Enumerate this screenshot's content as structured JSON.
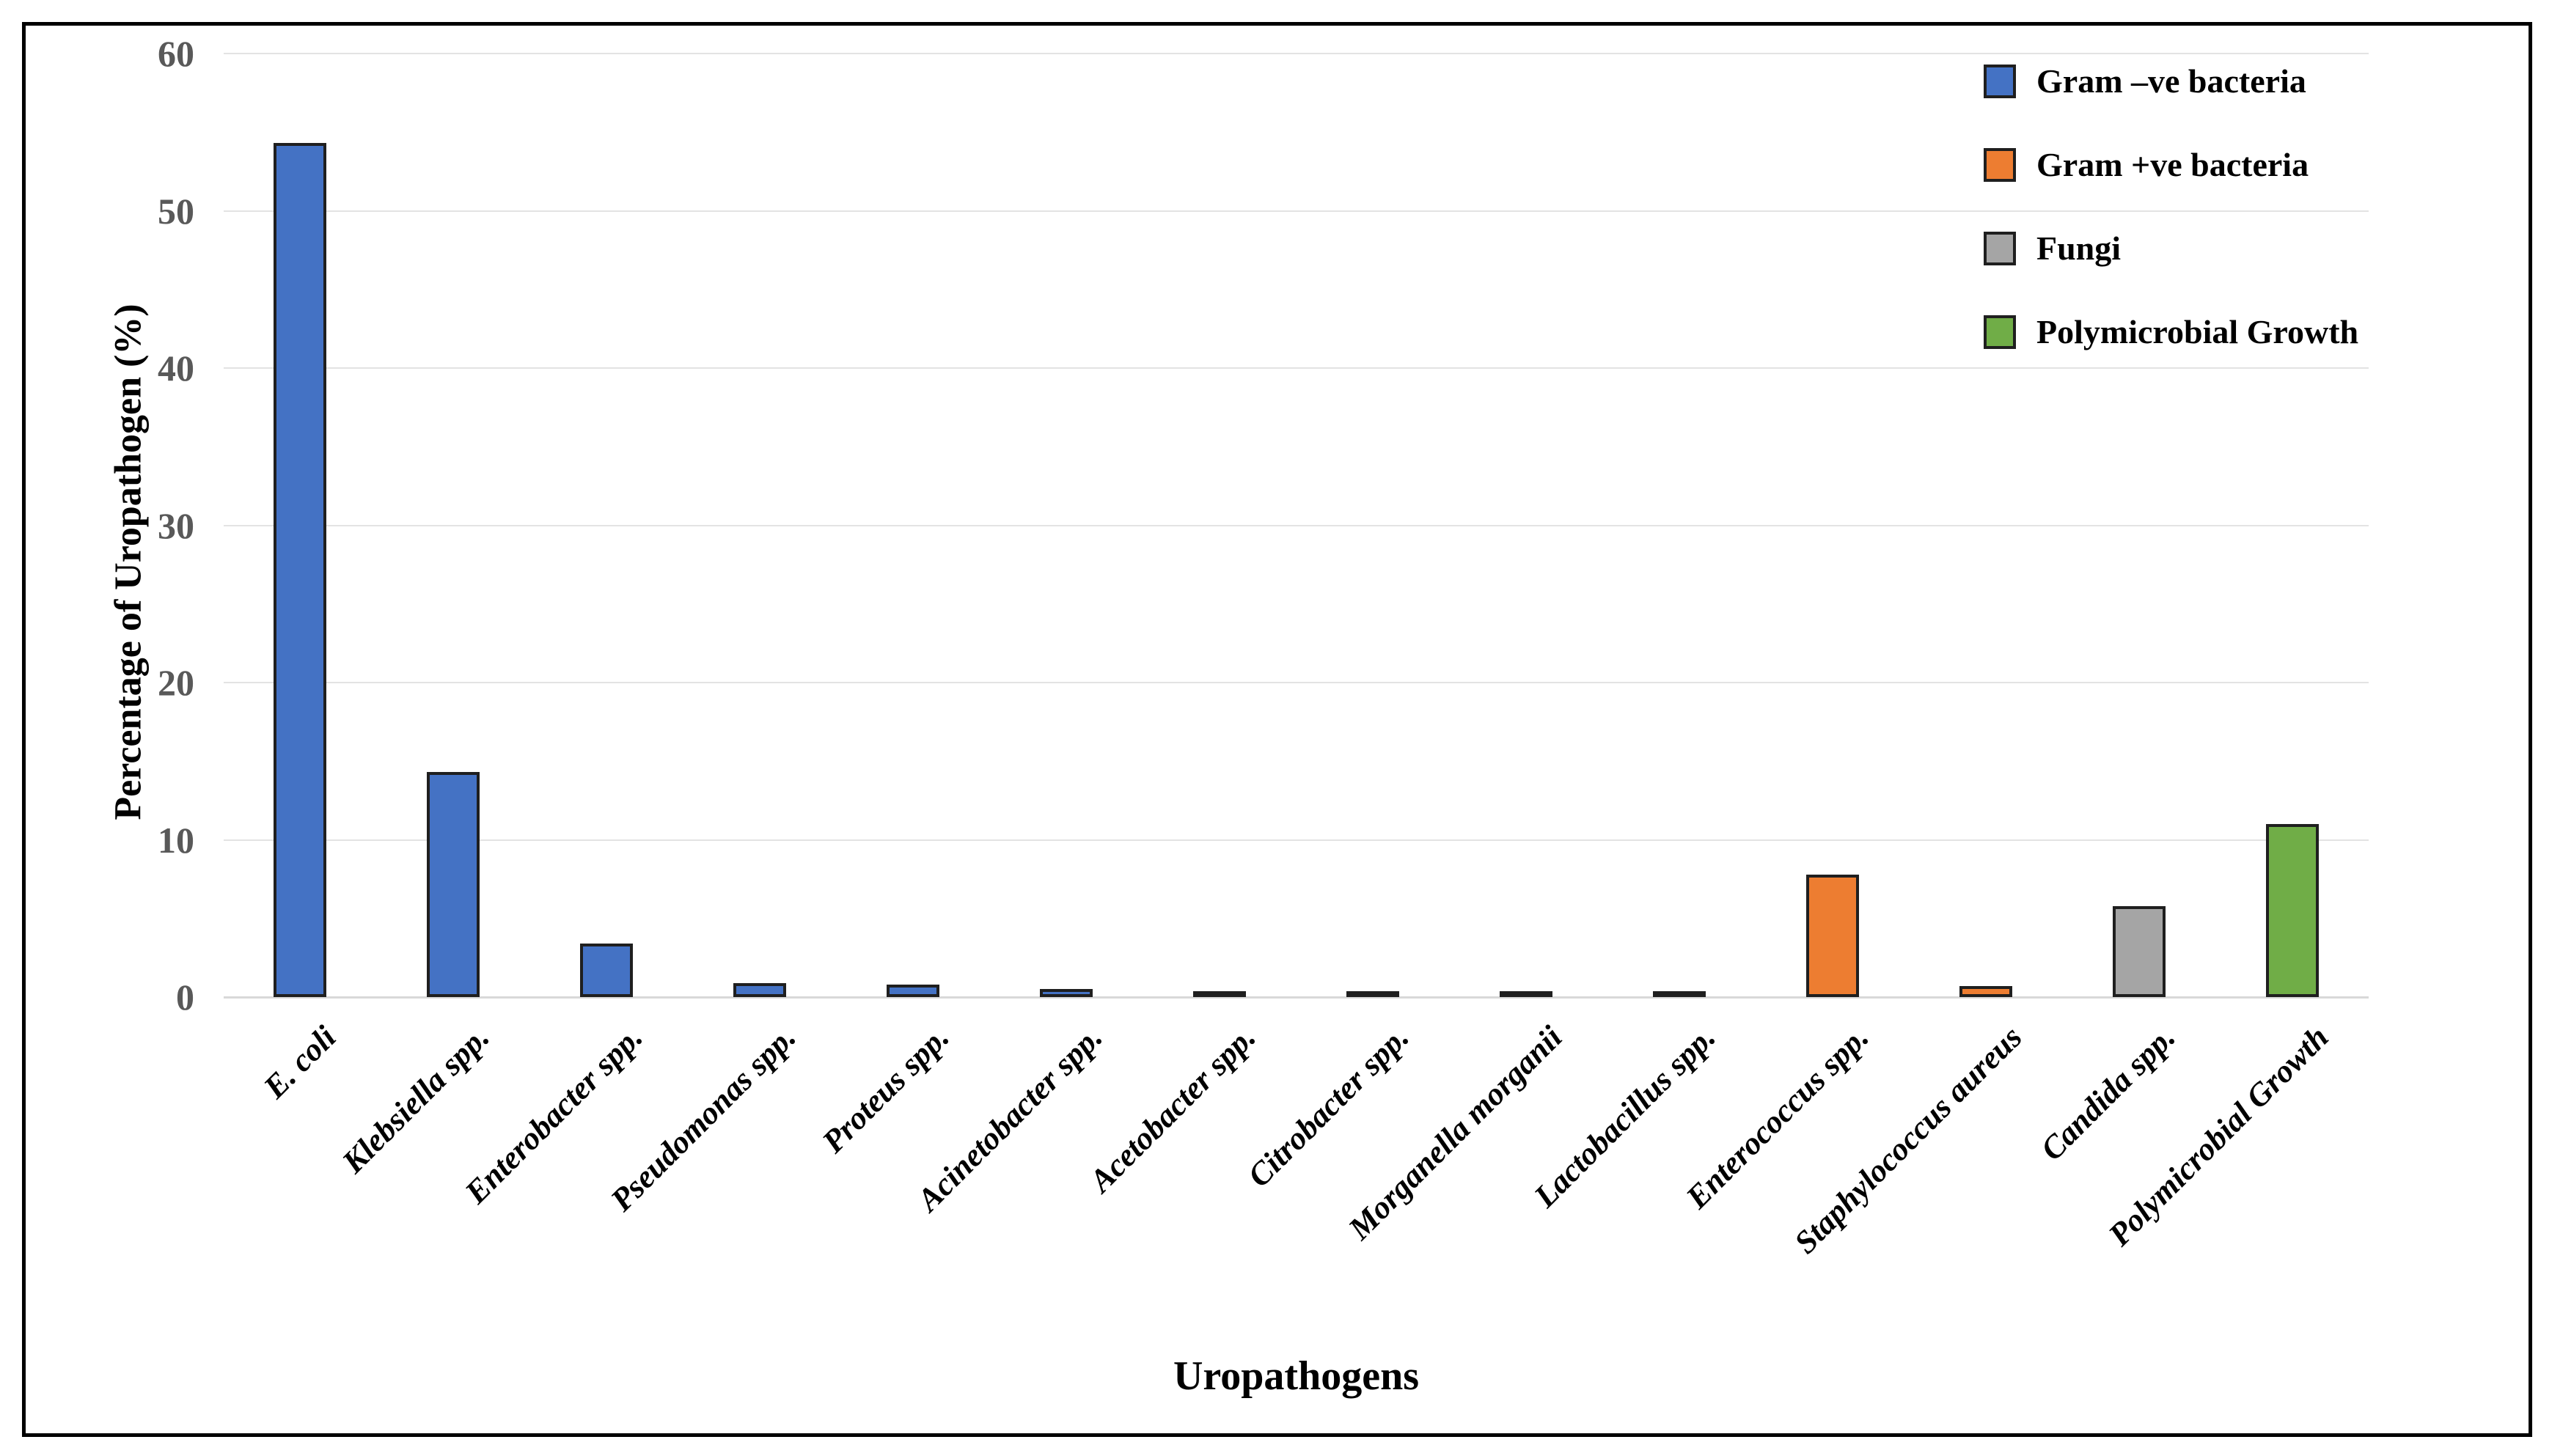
{
  "figure": {
    "background": "#ffffff",
    "border_color": "#000000"
  },
  "chart_data": {
    "type": "bar",
    "title": "",
    "xlabel": "Uropathogens",
    "ylabel": "Percentage of Uropathogen (%)",
    "ylim": [
      0,
      60
    ],
    "yticks": [
      0,
      10,
      20,
      30,
      40,
      50,
      60
    ],
    "grid": true,
    "legend_position": "top-right",
    "categories": [
      "E. coli",
      "Klebsiella spp.",
      "Enterobacter spp.",
      "Pseudomonas spp.",
      "Proteus spp.",
      "Acinetobacter spp.",
      "Acetobacter spp.",
      "Citrobacter spp.",
      "Morganella morganii",
      "Lactobacillus spp.",
      "Enterococcus spp.",
      "Staphylococcus aureus",
      "Candida spp.",
      "Polymicrobial Growth"
    ],
    "values": [
      54.3,
      14.3,
      3.4,
      0.9,
      0.8,
      0.5,
      0.2,
      0.2,
      0.2,
      0.2,
      7.8,
      0.7,
      5.8,
      11.0
    ],
    "groups": [
      "gram-negative",
      "gram-negative",
      "gram-negative",
      "gram-negative",
      "gram-negative",
      "gram-negative",
      "gram-negative",
      "gram-negative",
      "gram-negative",
      "gram-negative",
      "gram-positive",
      "gram-positive",
      "fungi",
      "polymicrobial"
    ],
    "legend": [
      {
        "key": "gram-negative",
        "label": "Gram –ve bacteria",
        "color": "#4472C4"
      },
      {
        "key": "gram-positive",
        "label": "Gram +ve bacteria",
        "color": "#ED7D31"
      },
      {
        "key": "fungi",
        "label": "Fungi",
        "color": "#A5A5A5"
      },
      {
        "key": "polymicrobial",
        "label": "Polymicrobial Growth",
        "color": "#70AD47"
      }
    ],
    "colors": {
      "bar_border": "#1f1f1f",
      "gridline": "#e3e3e3",
      "axis_line": "#d9d9d9",
      "tick_text": "#595959"
    }
  }
}
